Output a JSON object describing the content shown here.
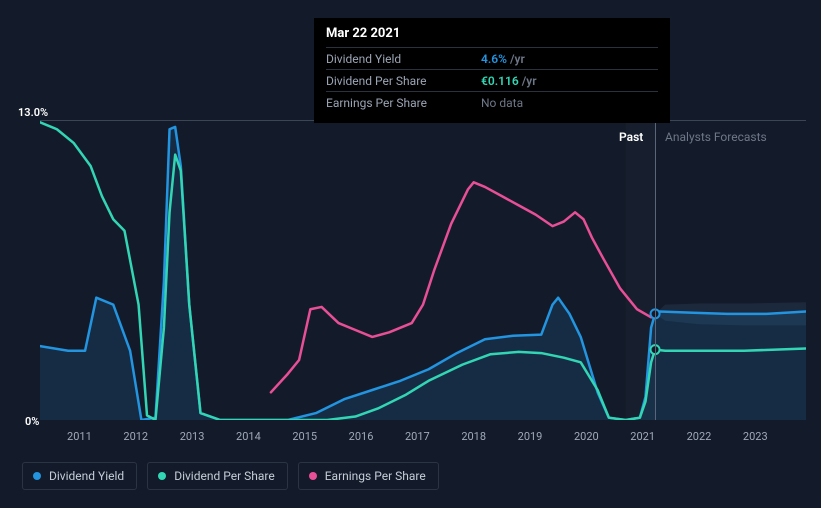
{
  "tooltip": {
    "date": "Mar 22 2021",
    "rows": [
      {
        "label": "Dividend Yield",
        "value": "4.6%",
        "suffix": "/yr",
        "color": "#2394df"
      },
      {
        "label": "Dividend Per Share",
        "value": "€0.116",
        "suffix": "/yr",
        "color": "#33d6b4"
      },
      {
        "label": "Earnings Per Share",
        "value": "No data",
        "suffix": "",
        "color": "#9ba4b4",
        "nodata": true
      }
    ]
  },
  "axes": {
    "ymax_label": "13.0%",
    "ymin_label": "0%",
    "ymax": 13.0,
    "ymin": 0,
    "xmin": 2010.3,
    "xmax": 2023.9,
    "xticks": [
      2011,
      2012,
      2013,
      2014,
      2015,
      2016,
      2017,
      2018,
      2019,
      2020,
      2021,
      2022,
      2023
    ]
  },
  "regions": {
    "past_label": "Past",
    "forecast_label": "Analysts Forecasts",
    "split_x": 2021.22,
    "past_end_x": 2020.7
  },
  "cursor": {
    "x": 2021.22,
    "markers": [
      {
        "series": "dividend_yield",
        "y": 4.6,
        "color": "#2394df"
      },
      {
        "series": "dividend_per_share",
        "y": 3.05,
        "color": "#33d6b4"
      }
    ]
  },
  "legend": [
    {
      "name": "Dividend Yield",
      "color": "#2394df"
    },
    {
      "name": "Dividend Per Share",
      "color": "#33d6b4"
    },
    {
      "name": "Earnings Per Share",
      "color": "#e84f97"
    }
  ],
  "style": {
    "background": "#131b2a",
    "plot_shade": "#18202f",
    "grid_color": "#3a4556",
    "axis_label_color": "#a0a9b8",
    "line_width": 2.5,
    "fill_opacity": 0.15,
    "forecast_band_fill": "#1e2a3d",
    "font_family": "sans-serif"
  },
  "series": {
    "dividend_yield": {
      "color": "#2394df",
      "fill": true,
      "points": [
        [
          2010.3,
          3.2
        ],
        [
          2010.8,
          3.0
        ],
        [
          2011.1,
          3.0
        ],
        [
          2011.3,
          5.3
        ],
        [
          2011.6,
          5.0
        ],
        [
          2011.9,
          3.0
        ],
        [
          2012.1,
          0.0
        ],
        [
          2012.35,
          0.1
        ],
        [
          2012.5,
          6.0
        ],
        [
          2012.6,
          12.6
        ],
        [
          2012.7,
          12.7
        ],
        [
          2012.8,
          11.0
        ],
        [
          2012.95,
          5.0
        ],
        [
          2013.15,
          0.3
        ],
        [
          2013.5,
          0.0
        ],
        [
          2014.0,
          0.0
        ],
        [
          2014.7,
          0.0
        ],
        [
          2015.2,
          0.3
        ],
        [
          2015.7,
          0.9
        ],
        [
          2016.2,
          1.3
        ],
        [
          2016.7,
          1.7
        ],
        [
          2017.2,
          2.2
        ],
        [
          2017.7,
          2.9
        ],
        [
          2018.2,
          3.5
        ],
        [
          2018.7,
          3.65
        ],
        [
          2019.2,
          3.7
        ],
        [
          2019.4,
          5.0
        ],
        [
          2019.5,
          5.3
        ],
        [
          2019.7,
          4.6
        ],
        [
          2019.9,
          3.6
        ],
        [
          2020.2,
          1.2
        ],
        [
          2020.4,
          0.1
        ],
        [
          2020.7,
          0.0
        ],
        [
          2020.95,
          0.1
        ],
        [
          2021.05,
          1.0
        ],
        [
          2021.15,
          4.0
        ],
        [
          2021.22,
          4.6
        ],
        [
          2021.3,
          4.7
        ],
        [
          2021.9,
          4.65
        ],
        [
          2022.5,
          4.6
        ],
        [
          2023.2,
          4.6
        ],
        [
          2023.9,
          4.7
        ]
      ],
      "forecast_band": [
        [
          2021.22,
          4.6,
          4.6
        ],
        [
          2021.4,
          4.3,
          5.0
        ],
        [
          2022.0,
          4.15,
          5.05
        ],
        [
          2022.8,
          4.1,
          5.05
        ],
        [
          2023.9,
          4.1,
          5.1
        ]
      ]
    },
    "dividend_per_share": {
      "color": "#33d6b4",
      "fill": false,
      "points": [
        [
          2010.3,
          12.9
        ],
        [
          2010.6,
          12.6
        ],
        [
          2010.9,
          12.0
        ],
        [
          2011.2,
          11.0
        ],
        [
          2011.4,
          9.7
        ],
        [
          2011.6,
          8.7
        ],
        [
          2011.8,
          8.2
        ],
        [
          2012.05,
          5.0
        ],
        [
          2012.2,
          0.2
        ],
        [
          2012.35,
          0.0
        ],
        [
          2012.5,
          4.0
        ],
        [
          2012.6,
          9.0
        ],
        [
          2012.7,
          11.5
        ],
        [
          2012.8,
          10.8
        ],
        [
          2012.95,
          5.0
        ],
        [
          2013.15,
          0.3
        ],
        [
          2013.5,
          0.0
        ],
        [
          2014.0,
          0.0
        ],
        [
          2014.8,
          0.0
        ],
        [
          2015.4,
          0.0
        ],
        [
          2015.9,
          0.15
        ],
        [
          2016.3,
          0.5
        ],
        [
          2016.8,
          1.1
        ],
        [
          2017.2,
          1.7
        ],
        [
          2017.8,
          2.4
        ],
        [
          2018.3,
          2.85
        ],
        [
          2018.8,
          2.95
        ],
        [
          2019.2,
          2.9
        ],
        [
          2019.6,
          2.7
        ],
        [
          2019.9,
          2.5
        ],
        [
          2020.2,
          1.3
        ],
        [
          2020.4,
          0.1
        ],
        [
          2020.7,
          0.0
        ],
        [
          2020.95,
          0.1
        ],
        [
          2021.05,
          0.8
        ],
        [
          2021.15,
          2.5
        ],
        [
          2021.22,
          3.05
        ],
        [
          2021.4,
          3.0
        ],
        [
          2022.0,
          3.0
        ],
        [
          2022.8,
          3.0
        ],
        [
          2023.9,
          3.1
        ]
      ]
    },
    "earnings_per_share": {
      "color": "#e84f97",
      "fill": false,
      "points": [
        [
          2014.4,
          1.2
        ],
        [
          2014.7,
          2.0
        ],
        [
          2014.9,
          2.6
        ],
        [
          2015.1,
          4.8
        ],
        [
          2015.3,
          4.9
        ],
        [
          2015.6,
          4.2
        ],
        [
          2015.9,
          3.9
        ],
        [
          2016.2,
          3.6
        ],
        [
          2016.5,
          3.8
        ],
        [
          2016.9,
          4.2
        ],
        [
          2017.1,
          5.0
        ],
        [
          2017.3,
          6.5
        ],
        [
          2017.6,
          8.5
        ],
        [
          2017.9,
          10.0
        ],
        [
          2018.0,
          10.3
        ],
        [
          2018.2,
          10.1
        ],
        [
          2018.5,
          9.7
        ],
        [
          2018.8,
          9.3
        ],
        [
          2019.1,
          8.9
        ],
        [
          2019.4,
          8.4
        ],
        [
          2019.6,
          8.6
        ],
        [
          2019.8,
          9.0
        ],
        [
          2019.95,
          8.7
        ],
        [
          2020.1,
          7.9
        ],
        [
          2020.3,
          7.0
        ],
        [
          2020.6,
          5.7
        ],
        [
          2020.9,
          4.8
        ],
        [
          2021.15,
          4.45
        ]
      ]
    }
  }
}
